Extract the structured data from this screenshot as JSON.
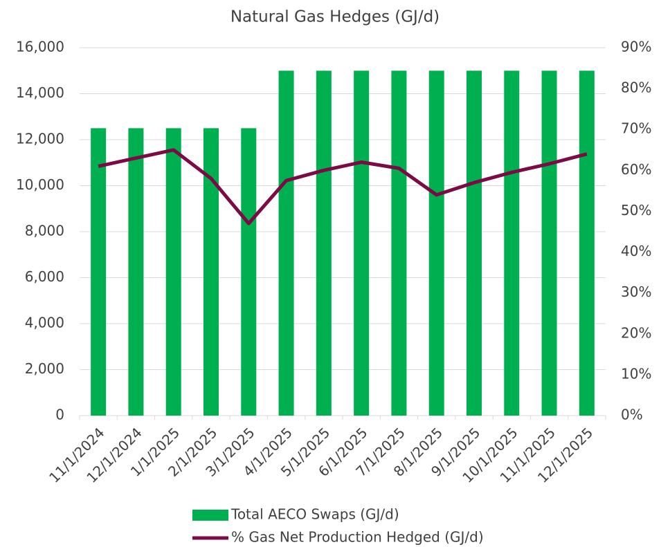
{
  "chart_data": {
    "type": "bar",
    "title": "Natural Gas Hedges (GJ/d)",
    "categories": [
      "11/1/2024",
      "12/1/2024",
      "1/1/2025",
      "2/1/2025",
      "3/1/2025",
      "4/1/2025",
      "5/1/2025",
      "6/1/2025",
      "7/1/2025",
      "8/1/2025",
      "9/1/2025",
      "10/1/2025",
      "11/1/2025",
      "12/1/2025"
    ],
    "series": [
      {
        "name": "Total AECO Swaps (GJ/d)",
        "color": "#00b050",
        "type": "bar",
        "values": [
          12500,
          12500,
          12500,
          12500,
          12500,
          15000,
          15000,
          15000,
          15000,
          15000,
          15000,
          15000,
          15000,
          15000
        ]
      },
      {
        "name": "% Gas Net Production Hedged (GJ/d)",
        "color": "#7b0a45",
        "type": "line",
        "axis": "y2",
        "values": [
          61,
          63,
          65,
          58,
          47,
          57.5,
          60,
          62,
          60.5,
          54,
          57,
          59.5,
          61.6,
          64
        ]
      }
    ],
    "ylim": [
      0,
      16000
    ],
    "yticks": [
      0,
      {
        "value": 2000,
        "label": "2,000"
      },
      {
        "value": 4000,
        "label": "4,000"
      },
      {
        "value": 6000,
        "label": "6,000"
      },
      {
        "value": 8000,
        "label": "8,000"
      },
      {
        "value": 10000,
        "label": "10,000"
      },
      {
        "value": 12000,
        "label": "12,000"
      },
      {
        "value": 14000,
        "label": "14,000"
      },
      {
        "value": 16000,
        "label": "16,000"
      }
    ],
    "y2lim": [
      0,
      90
    ],
    "y2ticks": [
      {
        "value": 0,
        "label": "0%"
      },
      {
        "value": 10,
        "label": "10%"
      },
      {
        "value": 20,
        "label": "20%"
      },
      {
        "value": 30,
        "label": "30%"
      },
      {
        "value": 40,
        "label": "40%"
      },
      {
        "value": 50,
        "label": "50%"
      },
      {
        "value": 60,
        "label": "60%"
      },
      {
        "value": 70,
        "label": "70%"
      },
      {
        "value": 80,
        "label": "80%"
      },
      {
        "value": 90,
        "label": "90%"
      }
    ],
    "grid": true,
    "legend": "bottom"
  }
}
